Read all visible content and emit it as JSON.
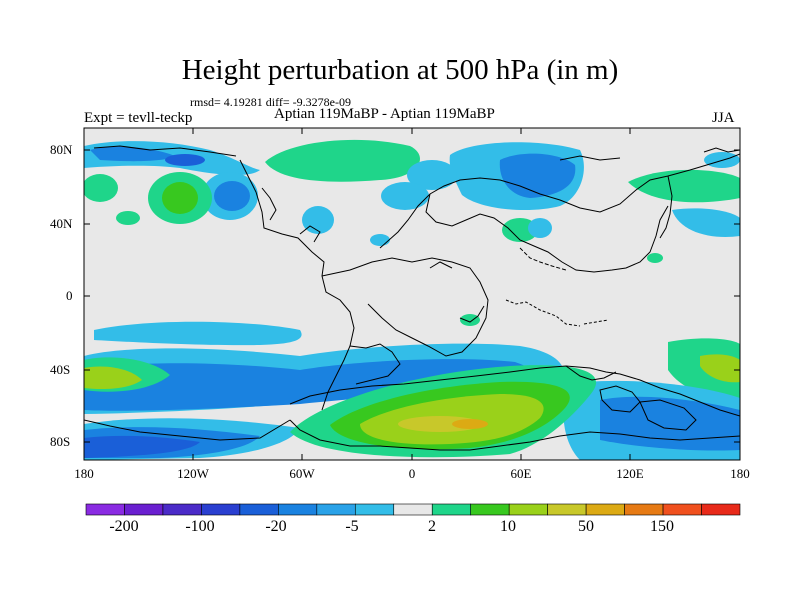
{
  "title": "Height perturbation at 500 hPa (in m)",
  "stats": "rmsd= 4.19281 diff= -9.3278e-09",
  "experiment": "Expt = tevll-teckp",
  "comparison": "Aptian   119MaBP - Aptian   119MaBP",
  "season": "JJA",
  "colors": {
    "background": "#e8e8e8",
    "coastline": "#000000"
  },
  "axes": {
    "lat_labels": [
      "80N",
      "40N",
      "0",
      "40S",
      "80S"
    ],
    "lon_labels": [
      "180",
      "120W",
      "60W",
      "0",
      "60E",
      "120E",
      "180"
    ]
  },
  "colorbar": {
    "colors": [
      "#8a2be2",
      "#6a1fd0",
      "#4b2bc8",
      "#2a3fd0",
      "#1a5fd8",
      "#1a82e0",
      "#2aa2e8",
      "#33bde8",
      "#e8e8e8",
      "#1fd58a",
      "#38c81f",
      "#9ad11a",
      "#c8c82a",
      "#dcaa14",
      "#e67a14",
      "#f0501e",
      "#e82a1a"
    ],
    "labels": [
      "-200",
      "-100",
      "-20",
      "-5",
      "2",
      "10",
      "50",
      "150"
    ]
  }
}
